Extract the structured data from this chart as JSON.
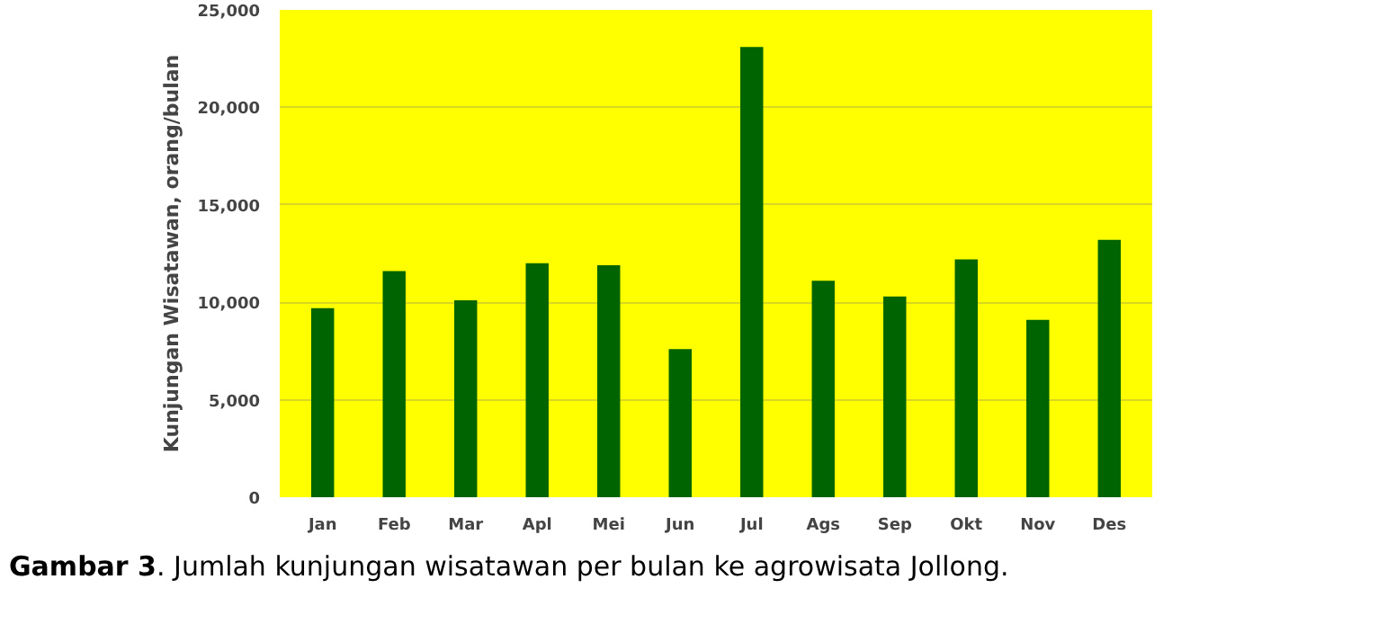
{
  "chart_data": {
    "type": "bar",
    "ylabel": "Kunjungan Wisatawan, orang/bulan",
    "categories": [
      "Jan",
      "Feb",
      "Mar",
      "Apl",
      "Mei",
      "Jun",
      "Jul",
      "Ags",
      "Sep",
      "Okt",
      "Nov",
      "Des"
    ],
    "values": [
      9700,
      11600,
      10100,
      12000,
      11900,
      7600,
      23100,
      11100,
      10300,
      12200,
      9100,
      13200
    ],
    "color": "#006400",
    "ylim": [
      0,
      25000
    ],
    "yticks": [
      {
        "value": 0,
        "label": "0"
      },
      {
        "value": 5000,
        "label": "5,000"
      },
      {
        "value": 10000,
        "label": "10,000"
      },
      {
        "value": 15000,
        "label": "15,000"
      },
      {
        "value": 20000,
        "label": "20,000"
      },
      {
        "value": 25000,
        "label": "25,000"
      }
    ],
    "grid": "y",
    "annotations": [
      "Gambar 3. Jumlah kunjungan wisatawan per bulan ke agrowisata Jollong."
    ]
  }
}
